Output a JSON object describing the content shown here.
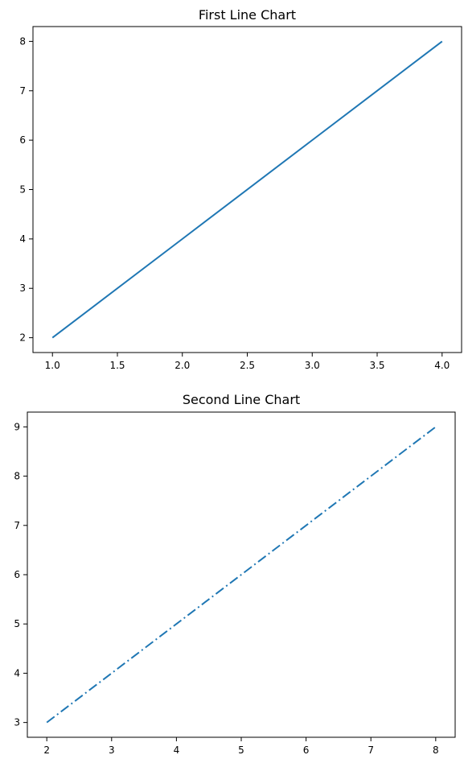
{
  "chart_data": [
    {
      "type": "line",
      "title": "First Line Chart",
      "xlabel": "",
      "ylabel": "",
      "x": [
        1,
        2,
        3,
        4
      ],
      "series": [
        {
          "values": [
            2,
            4,
            6,
            8
          ],
          "color": "#1f77b4",
          "linestyle": "solid"
        }
      ],
      "xlim": [
        0.85,
        4.15
      ],
      "ylim": [
        1.7,
        8.3
      ],
      "xticks": [
        1.0,
        1.5,
        2.0,
        2.5,
        3.0,
        3.5,
        4.0
      ],
      "xtick_labels": [
        "1.0",
        "1.5",
        "2.0",
        "2.5",
        "3.0",
        "3.5",
        "4.0"
      ],
      "yticks": [
        2,
        3,
        4,
        5,
        6,
        7,
        8
      ],
      "ytick_labels": [
        "2",
        "3",
        "4",
        "5",
        "6",
        "7",
        "8"
      ],
      "grid": false
    },
    {
      "type": "line",
      "title": "Second Line Chart",
      "xlabel": "",
      "ylabel": "",
      "x": [
        2,
        4,
        6,
        8
      ],
      "series": [
        {
          "values": [
            3,
            5,
            7,
            9
          ],
          "color": "#1f77b4",
          "linestyle": "dashdot"
        }
      ],
      "xlim": [
        1.7,
        8.3
      ],
      "ylim": [
        2.7,
        9.3
      ],
      "xticks": [
        2,
        3,
        4,
        5,
        6,
        7,
        8
      ],
      "xtick_labels": [
        "2",
        "3",
        "4",
        "5",
        "6",
        "7",
        "8"
      ],
      "yticks": [
        3,
        4,
        5,
        6,
        7,
        8,
        9
      ],
      "ytick_labels": [
        "3",
        "4",
        "5",
        "6",
        "7",
        "8",
        "9"
      ],
      "grid": false
    }
  ]
}
